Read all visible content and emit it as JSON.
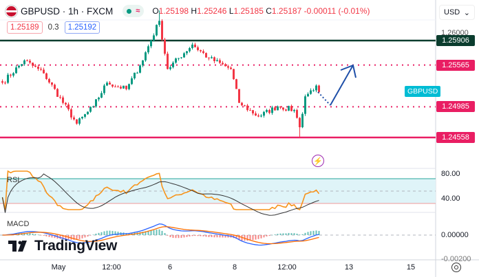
{
  "header": {
    "symbol": "GBPUSD · 1h · FXCM",
    "status_icon": "market-open-dot",
    "delay_icon": "≈",
    "ohlc": {
      "o_label": "O",
      "o": "1.25198",
      "h_label": "H",
      "h": "1.25246",
      "l_label": "L",
      "l": "1.25185",
      "c_label": "C",
      "c": "1.25187",
      "change": "-0.00011 (-0.01%)"
    },
    "bid": "1.25189",
    "spread": "0.3",
    "ask": "1.25192"
  },
  "currency_select": "USD",
  "price_axis": {
    "levels": [
      {
        "label": "1.25906",
        "price": 1.25906,
        "color": "#0b3d2e",
        "style": "solid"
      },
      {
        "label": "1.25565",
        "price": 1.25565,
        "color": "#e91e63",
        "style": "dotted"
      },
      {
        "label": "1.24985",
        "price": 1.24985,
        "color": "#e91e63",
        "style": "dotted"
      },
      {
        "label": "1.24558",
        "price": 1.24558,
        "color": "#e91e63",
        "style": "solid"
      }
    ],
    "tick_top": "1.26000",
    "symbol_tag": "GBPUSD"
  },
  "price_path": [
    [
      0,
      1.2532
    ],
    [
      8,
      1.2563
    ],
    [
      15,
      1.2545
    ],
    [
      27,
      1.2475
    ],
    [
      33,
      1.2499
    ],
    [
      38,
      1.2532
    ],
    [
      45,
      1.2523
    ],
    [
      50,
      1.2556
    ],
    [
      57,
      1.2618
    ],
    [
      60,
      1.2551
    ],
    [
      69,
      1.2585
    ],
    [
      75,
      1.2566
    ],
    [
      83,
      1.2551
    ],
    [
      86,
      1.2504
    ],
    [
      93,
      1.2485
    ],
    [
      100,
      1.2499
    ],
    [
      106,
      1.2494
    ],
    [
      108,
      1.247
    ],
    [
      110,
      1.2513
    ],
    [
      114,
      1.2528
    ],
    [
      115,
      1.2519
    ]
  ],
  "colors": {
    "up": "#089981",
    "down": "#f23645",
    "rsi": "#f7931a",
    "rsi_ma": "#333333",
    "macd": "#2962ff",
    "signal": "#ff6d00",
    "arrow": "#1e4fa8"
  },
  "rsi": {
    "label": "RSI",
    "upper": "80.00",
    "lower": "40.00"
  },
  "macd": {
    "label": "MACD",
    "zero": "0.00000",
    "bottom": "-0.00200"
  },
  "time_axis": [
    "May",
    "12:00",
    "6",
    "8",
    "12:00",
    "13",
    "15"
  ],
  "brand": "TradingView"
}
